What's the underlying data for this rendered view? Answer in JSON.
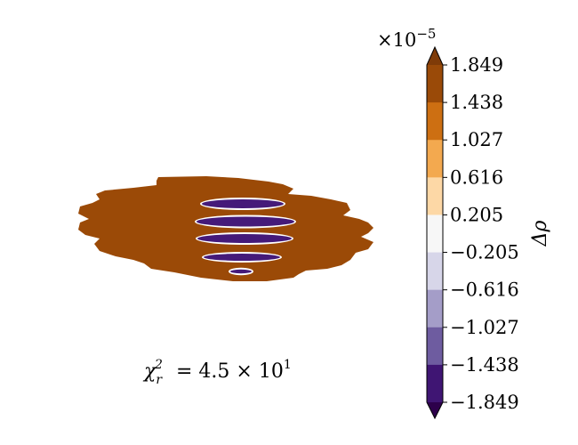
{
  "chart_data": {
    "type": "heatmap",
    "title": "",
    "annotation": {
      "lhs": "χ",
      "lhs_sub": "r",
      "lhs_sup": "2",
      "rhs_mantissa": "4.5",
      "rhs_base": "10",
      "rhs_exp": "1",
      "equals": "=",
      "times": "×"
    },
    "colorbar": {
      "label": "Δρ",
      "multiplier_base": "×10",
      "multiplier_exp": "−5",
      "ticks": [
        "1.849",
        "1.438",
        "1.027",
        "0.616",
        "0.205",
        "−0.205",
        "−0.616",
        "−1.027",
        "−1.438",
        "−1.849"
      ],
      "tick_values": [
        1.849,
        1.438,
        1.027,
        0.616,
        0.205,
        -0.205,
        -0.616,
        -1.027,
        -1.438,
        -1.849
      ],
      "scale": 1e-05,
      "extend": "both",
      "colors": [
        "#9a4a08",
        "#cd6f12",
        "#f3a94f",
        "#fdd8a6",
        "#f7f7f7",
        "#d7d6e9",
        "#a49dc8",
        "#6e5ca0",
        "#3f1573"
      ],
      "over_color": "#7f3b08",
      "under_color": "#2d004b"
    },
    "map": {
      "positive_color": "#9b4a07",
      "negative_color": "#451a79",
      "background": "#ffffff",
      "grid": false
    }
  }
}
